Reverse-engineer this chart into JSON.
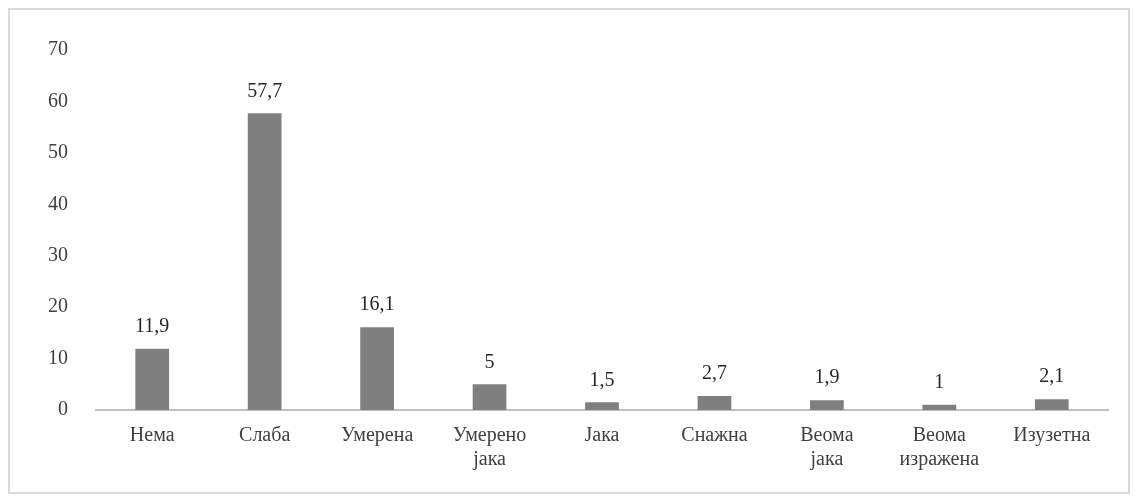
{
  "chart_data": {
    "type": "bar",
    "categories": [
      "Нема",
      "Слаба",
      "Умерена",
      "Умерено јака",
      "Јака",
      "Снажна",
      "Веома јака",
      "Веома изражена",
      "Изузетна"
    ],
    "values": [
      11.9,
      57.7,
      16.1,
      5,
      1.5,
      2.7,
      1.9,
      1,
      2.1
    ],
    "value_labels": [
      "11,9",
      "57,7",
      "16,1",
      "5",
      "1,5",
      "2,7",
      "1,9",
      "1",
      "2,1"
    ],
    "color": "#7f7f7f",
    "ylim": [
      0,
      70
    ],
    "yticks": [
      0,
      10,
      20,
      30,
      40,
      50,
      60,
      70
    ],
    "grid": false,
    "legend": false
  }
}
